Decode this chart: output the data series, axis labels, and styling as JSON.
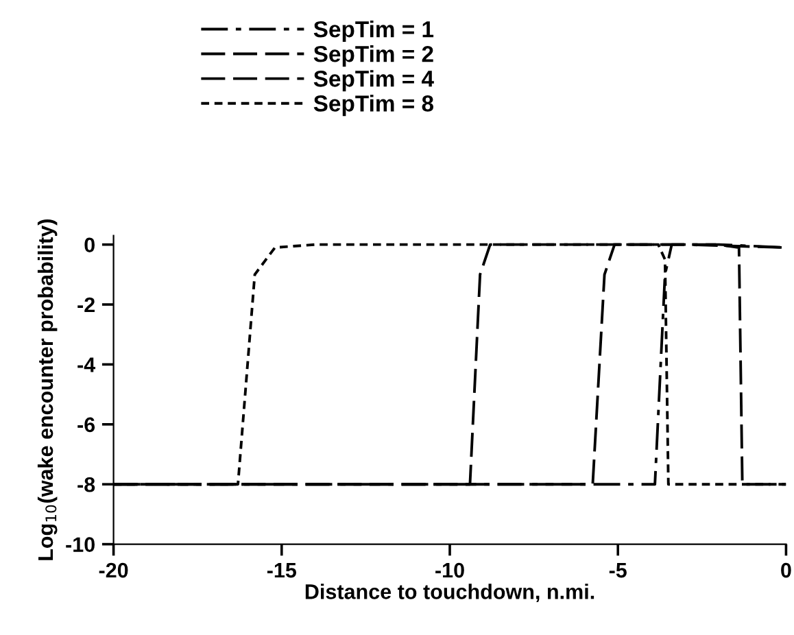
{
  "chart_data": {
    "type": "line",
    "xlabel": "Distance to touchdown, n.mi.",
    "ylabel": "Log$_{10}$(wake encounter probability)",
    "xlim": [
      -20,
      0
    ],
    "ylim": [
      -10,
      0.3
    ],
    "xticks": [
      -20,
      -15,
      -10,
      -5,
      0
    ],
    "yticks": [
      -10,
      -8,
      -6,
      -4,
      -2,
      0
    ],
    "grid": false,
    "legend": "top",
    "marker": "none",
    "series": [
      {
        "name": "SepTim = 1",
        "color": "#000000",
        "line_style": "dashdot",
        "x": [
          -20,
          -3.9,
          -3.6,
          -3.4,
          -2,
          0
        ],
        "values": [
          -8,
          -8,
          -1,
          0,
          0,
          -0.1
        ]
      },
      {
        "name": "SepTim = 2",
        "color": "#000000",
        "line_style": "dashed",
        "x": [
          -20,
          -5.75,
          -5.4,
          -5.1,
          -3,
          0
        ],
        "values": [
          -8,
          -8,
          -1,
          0,
          0,
          -0.1
        ]
      },
      {
        "name": "SepTim = 4",
        "color": "#000000",
        "line_style": "dashed",
        "x": [
          -20,
          -9.4,
          -9.1,
          -8.8,
          -2,
          -1.4,
          -1.3,
          0
        ],
        "values": [
          -8,
          -8,
          -1,
          0,
          0,
          -0.1,
          -8,
          -8
        ]
      },
      {
        "name": "SepTim = 8",
        "color": "#000000",
        "line_style": "dotted",
        "x": [
          -20,
          -16.3,
          -15.8,
          -15.2,
          -14,
          -3.8,
          -3.6,
          -3.5,
          0
        ],
        "values": [
          -8,
          -8,
          -1,
          -0.1,
          0,
          0,
          -0.5,
          -8,
          -8
        ]
      }
    ]
  }
}
